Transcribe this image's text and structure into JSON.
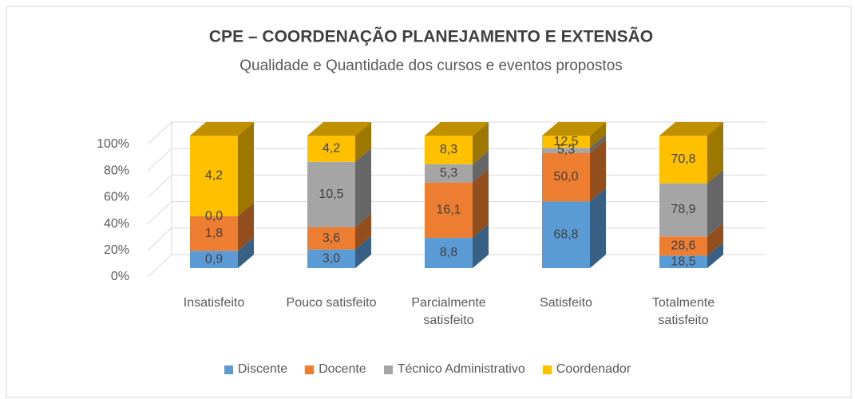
{
  "chart_data": {
    "type": "bar3d_stacked",
    "stacking": "percent",
    "title": "CPE – COORDENAÇÃO PLANEJAMENTO E EXTENSÃO",
    "subtitle": "Qualidade e Quantidade dos cursos e eventos propostos",
    "categories": [
      "Insatisfeito",
      "Pouco satisfeito",
      "Parcialmente satisfeito",
      "Satisfeito",
      "Totalmente satisfeito"
    ],
    "series": [
      {
        "name": "Discente",
        "color": "#5b9bd5",
        "values": [
          0.9,
          3.0,
          8.8,
          68.8,
          18.5
        ],
        "value_labels": [
          "0,9",
          "3,0",
          "8,8",
          "68,8",
          "18,5"
        ]
      },
      {
        "name": "Docente",
        "color": "#ed7d31",
        "values": [
          1.8,
          3.6,
          16.1,
          50.0,
          28.6
        ],
        "value_labels": [
          "1,8",
          "3,6",
          "16,1",
          "50,0",
          "28,6"
        ]
      },
      {
        "name": "Técnico Administrativo",
        "color": "#a5a5a5",
        "values": [
          0.0,
          10.5,
          5.3,
          5.3,
          78.9
        ],
        "value_labels": [
          "0,0",
          "10,5",
          "5,3",
          "5,3",
          "78,9"
        ]
      },
      {
        "name": "Coordenador",
        "color": "#ffc000",
        "values": [
          4.2,
          4.2,
          8.3,
          12.5,
          70.8
        ],
        "value_labels": [
          "4,2",
          "4,2",
          "8,3",
          "12,5",
          "70,8"
        ]
      }
    ],
    "ylim": [
      0,
      100
    ],
    "yticks": [
      {
        "value": 0,
        "label": "0%"
      },
      {
        "value": 20,
        "label": "20%"
      },
      {
        "value": 40,
        "label": "40%"
      },
      {
        "value": 60,
        "label": "60%"
      },
      {
        "value": 80,
        "label": "80%"
      },
      {
        "value": 100,
        "label": "100%"
      }
    ],
    "grid": true,
    "legend": "bottom"
  }
}
